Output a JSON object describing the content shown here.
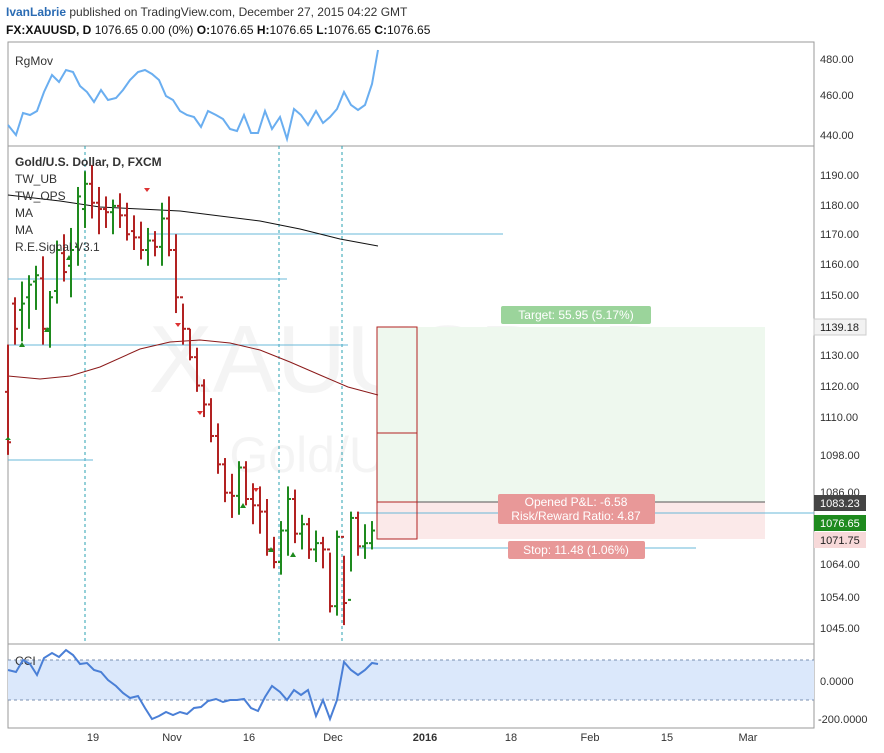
{
  "header": {
    "author": "IvanLabrie",
    "published": "published on TradingView.com, December 27, 2015 04:22 GMT",
    "symbol": "FX:XAUUSD, D",
    "quote": "1076.65 0.00 (0%)",
    "open_label": "O:",
    "open": "1076.65",
    "high_label": "H:",
    "high": "1076.65",
    "low_label": "L:",
    "low": "1076.65",
    "close_label": "C:",
    "close": "1076.65"
  },
  "watermark": {
    "symbol": "XAUUSD, D",
    "name": "Gold/U.S. Dollar"
  },
  "price_pane": {
    "title": "Gold/U.S. Dollar, D, FXCM",
    "indicators": [
      "TW_UB",
      "TW_OPS",
      "MA",
      "MA",
      "R.E.Signal V3.1"
    ],
    "y_ticks": [
      "1190.00",
      "1180.00",
      "1170.00",
      "1160.00",
      "1150.00",
      "1130.00",
      "1120.00",
      "1110.00",
      "1098.00",
      "1086.00",
      "1064.00",
      "1054.00",
      "1045.00"
    ],
    "price_badges": [
      {
        "label": "1139.18",
        "bg": "#f2f2f2",
        "fg": "#222"
      },
      {
        "label": "1083.23",
        "bg": "#444444",
        "fg": "#ffffff"
      },
      {
        "label": "1076.65",
        "bg": "#1e8a1e",
        "fg": "#ffffff"
      },
      {
        "label": "1071.75",
        "bg": "#f7d9d9",
        "fg": "#222"
      }
    ],
    "position": {
      "target_label": "Target: 55.95 (5.17%)",
      "pnl_label": "Opened P&L: -6.58",
      "rr_label": "Risk/Reward Ratio: 4.87",
      "stop_label": "Stop: 11.48 (1.06%)",
      "entry": 1083.23,
      "target": 1139.18,
      "stop": 1071.75,
      "current": 1076.65
    }
  },
  "rgmov_pane": {
    "title": "RgMov",
    "y_ticks": [
      "480.00",
      "460.00",
      "440.00"
    ]
  },
  "cci_pane": {
    "title": "CCI",
    "y_ticks": [
      "0.0000",
      "-200.0000"
    ]
  },
  "x_axis": {
    "labels": [
      "19",
      "Nov",
      "16",
      "Dec",
      "2016",
      "18",
      "Feb",
      "15",
      "Mar"
    ]
  },
  "colors": {
    "up": "#1e8a1e",
    "down": "#b22222",
    "rgmov": "#6aaef0",
    "cci": "#4a7fd6",
    "ma_slow": "#111111",
    "ma_fast": "#8b1a1a",
    "target_zone": "#eef8ee",
    "stop_zone": "#fbe9e9"
  },
  "chart_data": {
    "type": "ohlc",
    "title": "Gold/U.S. Dollar, D, FXCM",
    "ylim": [
      1040,
      1198
    ],
    "bars": [
      [
        1120,
        1135,
        1100,
        1104
      ],
      [
        1148,
        1150,
        1135,
        1140
      ],
      [
        1146,
        1155,
        1136,
        1148
      ],
      [
        1150,
        1157,
        1140,
        1154
      ],
      [
        1155,
        1160,
        1146,
        1157
      ],
      [
        1156,
        1163,
        1135,
        1140
      ],
      [
        1140,
        1152,
        1134,
        1150
      ],
      [
        1152,
        1168,
        1148,
        1165
      ],
      [
        1164,
        1170,
        1155,
        1158
      ],
      [
        1160,
        1172,
        1150,
        1165
      ],
      [
        1166,
        1185,
        1160,
        1182
      ],
      [
        1178,
        1190,
        1172,
        1186
      ],
      [
        1186,
        1192,
        1175,
        1180
      ],
      [
        1180,
        1185,
        1170,
        1178
      ],
      [
        1178,
        1182,
        1172,
        1177
      ],
      [
        1177,
        1181,
        1170,
        1179
      ],
      [
        1179,
        1183,
        1172,
        1176
      ],
      [
        1176,
        1180,
        1168,
        1170
      ],
      [
        1171,
        1176,
        1165,
        1169
      ],
      [
        1169,
        1174,
        1162,
        1165
      ],
      [
        1165,
        1172,
        1160,
        1168
      ],
      [
        1168,
        1171,
        1163,
        1166
      ],
      [
        1166,
        1180,
        1160,
        1175
      ],
      [
        1175,
        1182,
        1163,
        1165
      ],
      [
        1165,
        1170,
        1145,
        1150
      ],
      [
        1150,
        1148,
        1135,
        1140
      ],
      [
        1140,
        1140,
        1130,
        1131
      ],
      [
        1131,
        1134,
        1120,
        1122
      ],
      [
        1122,
        1124,
        1112,
        1116
      ],
      [
        1116,
        1118,
        1104,
        1106
      ],
      [
        1106,
        1110,
        1094,
        1097
      ],
      [
        1097,
        1099,
        1085,
        1088
      ],
      [
        1088,
        1094,
        1080,
        1087
      ],
      [
        1087,
        1098,
        1081,
        1096
      ],
      [
        1096,
        1098,
        1084,
        1086
      ],
      [
        1086,
        1091,
        1078,
        1084
      ],
      [
        1084,
        1090,
        1075,
        1082
      ],
      [
        1082,
        1086,
        1068,
        1070
      ],
      [
        1070,
        1074,
        1064,
        1066
      ],
      [
        1066,
        1079,
        1062,
        1076
      ],
      [
        1076,
        1090,
        1068,
        1086
      ],
      [
        1086,
        1089,
        1072,
        1075
      ],
      [
        1075,
        1081,
        1070,
        1078
      ],
      [
        1078,
        1080,
        1067,
        1070
      ],
      [
        1070,
        1076,
        1066,
        1072
      ],
      [
        1072,
        1074,
        1064,
        1070
      ],
      [
        1070,
        1069,
        1050,
        1052
      ],
      [
        1052,
        1076,
        1049,
        1074
      ],
      [
        1074,
        1068,
        1046,
        1053
      ],
      [
        1054,
        1082,
        1063,
        1080
      ],
      [
        1080,
        1082,
        1068,
        1071
      ],
      [
        1071,
        1078,
        1067,
        1072
      ],
      [
        1072,
        1079,
        1070,
        1076
      ]
    ]
  }
}
